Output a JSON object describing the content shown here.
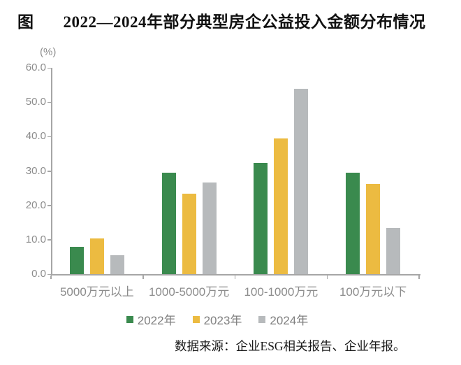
{
  "title": {
    "prefix": "图",
    "text": "2022—2024年部分典型房企公益投入金额分布情况"
  },
  "chart_data": {
    "type": "bar",
    "title": "2022—2024年部分典型房企公益投入金额分布情况",
    "unit_label": "(%)",
    "categories": [
      "5000万元以上",
      "1000-5000万元",
      "100-1000万元",
      "100万元以下"
    ],
    "series": [
      {
        "name": "2022年",
        "color": "#3a8a4e",
        "values": [
          7.9,
          29.5,
          32.4,
          29.5
        ]
      },
      {
        "name": "2023年",
        "color": "#ecbb41",
        "values": [
          10.3,
          23.4,
          39.4,
          26.2
        ]
      },
      {
        "name": "2024年",
        "color": "#b7babc",
        "values": [
          5.4,
          26.7,
          53.9,
          13.4
        ]
      }
    ],
    "ylim": [
      0,
      60
    ],
    "ytick_step": 10,
    "ytick_labels": [
      "0.0",
      "10.0",
      "20.0",
      "30.0",
      "40.0",
      "50.0",
      "60.0"
    ],
    "grid": false,
    "legend_position": "bottom"
  },
  "source_note": "数据来源：企业ESG相关报告、企业年报。",
  "colors": {
    "axis": "#a6a6a6",
    "axis_text": "#8c8c8c",
    "legend_text": "#7f7f7f",
    "title_text": "#111111"
  }
}
